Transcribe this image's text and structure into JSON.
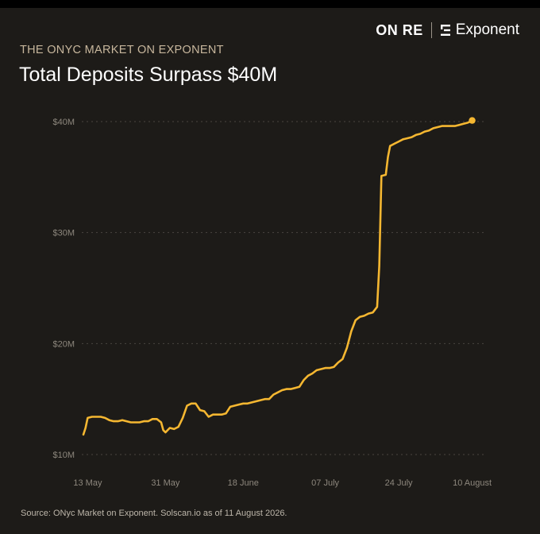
{
  "brand": {
    "onre": "ON RE",
    "exponent": "Exponent"
  },
  "header": {
    "subtitle": "THE ONYC MARKET ON EXPONENT",
    "title": "Total Deposits Surpass $40M"
  },
  "source": "Source: ONyc Market on Exponent. Solscan.io as of 11 August 2026.",
  "colors": {
    "background": "#1d1b18",
    "line": "#f5b731",
    "subtitle": "#c8b79d"
  },
  "chart_data": {
    "type": "line",
    "title": "Total Deposits Surpass $40M",
    "xlabel": "",
    "ylabel": "",
    "yticks": [
      {
        "value": 10,
        "label": "$10M"
      },
      {
        "value": 20,
        "label": "$20M"
      },
      {
        "value": 30,
        "label": "$30M"
      },
      {
        "value": 40,
        "label": "$40M"
      }
    ],
    "xticks": [
      {
        "day": 0,
        "label": "13 May"
      },
      {
        "day": 18,
        "label": "31 May"
      },
      {
        "day": 36,
        "label": "18 June"
      },
      {
        "day": 55,
        "label": "07 July"
      },
      {
        "day": 72,
        "label": "24 July"
      },
      {
        "day": 89,
        "label": "10 August"
      }
    ],
    "xlim": [
      -1,
      90
    ],
    "ylim": [
      10,
      40
    ],
    "grid": "horizontal-dashed",
    "series": [
      {
        "values": [
          [
            -1,
            11.8
          ],
          [
            -0.5,
            12.4
          ],
          [
            0,
            13.3
          ],
          [
            1,
            13.4
          ],
          [
            2,
            13.4
          ],
          [
            3,
            13.4
          ],
          [
            4,
            13.3
          ],
          [
            5,
            13.1
          ],
          [
            6,
            13.0
          ],
          [
            7,
            13.0
          ],
          [
            8,
            13.1
          ],
          [
            9,
            13.0
          ],
          [
            10,
            12.9
          ],
          [
            11,
            12.9
          ],
          [
            12,
            12.9
          ],
          [
            13,
            13.0
          ],
          [
            14,
            13.0
          ],
          [
            15,
            13.2
          ],
          [
            16,
            13.2
          ],
          [
            17,
            12.9
          ],
          [
            17.5,
            12.2
          ],
          [
            18,
            12.0
          ],
          [
            19,
            12.4
          ],
          [
            20,
            12.3
          ],
          [
            21,
            12.5
          ],
          [
            22,
            13.3
          ],
          [
            23,
            14.4
          ],
          [
            24,
            14.6
          ],
          [
            25,
            14.6
          ],
          [
            26,
            14.0
          ],
          [
            27,
            13.9
          ],
          [
            28,
            13.4
          ],
          [
            29,
            13.6
          ],
          [
            30,
            13.6
          ],
          [
            31,
            13.6
          ],
          [
            32,
            13.7
          ],
          [
            33,
            14.3
          ],
          [
            34,
            14.4
          ],
          [
            35,
            14.5
          ],
          [
            36,
            14.6
          ],
          [
            37,
            14.6
          ],
          [
            38,
            14.7
          ],
          [
            39,
            14.8
          ],
          [
            40,
            14.9
          ],
          [
            41,
            15.0
          ],
          [
            42,
            15.0
          ],
          [
            43,
            15.4
          ],
          [
            44,
            15.6
          ],
          [
            45,
            15.8
          ],
          [
            46,
            15.9
          ],
          [
            47,
            15.9
          ],
          [
            48,
            16.0
          ],
          [
            49,
            16.1
          ],
          [
            50,
            16.7
          ],
          [
            51,
            17.1
          ],
          [
            52,
            17.3
          ],
          [
            53,
            17.6
          ],
          [
            54,
            17.7
          ],
          [
            55,
            17.8
          ],
          [
            56,
            17.8
          ],
          [
            57,
            17.9
          ],
          [
            58,
            18.3
          ],
          [
            59,
            18.6
          ],
          [
            60,
            19.6
          ],
          [
            61,
            21.1
          ],
          [
            62,
            22.1
          ],
          [
            63,
            22.4
          ],
          [
            64,
            22.5
          ],
          [
            65,
            22.7
          ],
          [
            66,
            22.8
          ],
          [
            67,
            23.3
          ],
          [
            67.5,
            27.0
          ],
          [
            68,
            35.1
          ],
          [
            69,
            35.2
          ],
          [
            69.5,
            36.8
          ],
          [
            70,
            37.8
          ],
          [
            71,
            38.0
          ],
          [
            72,
            38.2
          ],
          [
            73,
            38.4
          ],
          [
            74,
            38.5
          ],
          [
            75,
            38.6
          ],
          [
            76,
            38.8
          ],
          [
            77,
            38.9
          ],
          [
            78,
            39.1
          ],
          [
            79,
            39.2
          ],
          [
            80,
            39.4
          ],
          [
            81,
            39.5
          ],
          [
            82,
            39.6
          ],
          [
            83,
            39.6
          ],
          [
            84,
            39.6
          ],
          [
            85,
            39.6
          ],
          [
            86,
            39.7
          ],
          [
            87,
            39.8
          ],
          [
            88,
            39.9
          ],
          [
            89,
            40.1
          ]
        ]
      }
    ]
  }
}
